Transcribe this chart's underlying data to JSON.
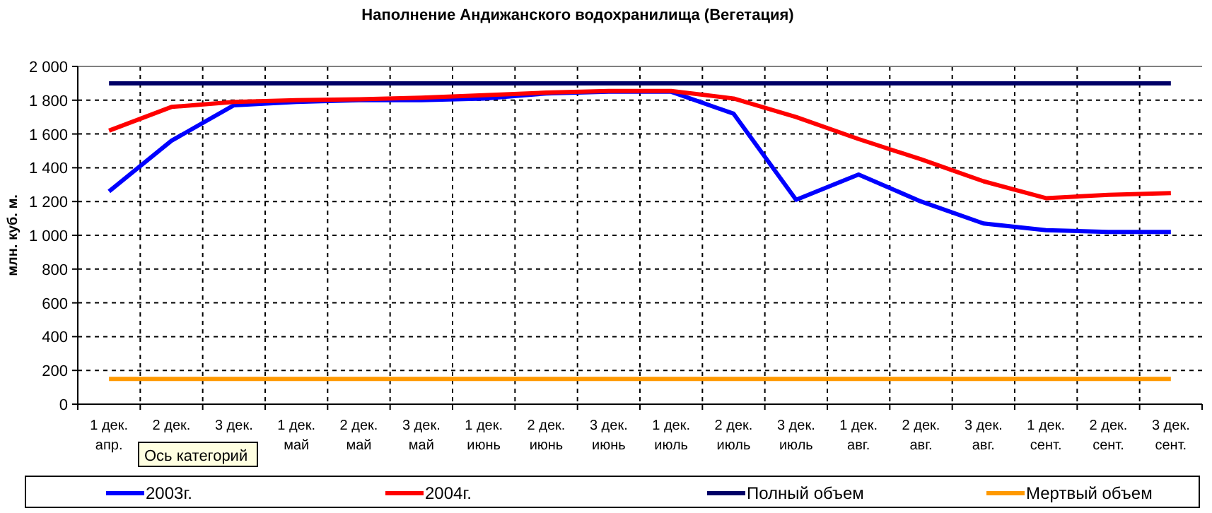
{
  "chart_data": {
    "type": "line",
    "title": "Наполнение Андижанского водохранилища (Вегетация)",
    "ylabel": "млн. куб. м.",
    "categories": [
      "1 дек.\nапр.",
      "2 дек.\nапр.",
      "3 дек.\nапр.",
      "1 дек.\nмай",
      "2 дек.\nмай",
      "3 дек.\nмай",
      "1 дек.\nиюнь",
      "2 дек.\nиюнь",
      "3 дек.\nиюнь",
      "1 дек.\nиюль",
      "2 дек.\nиюль",
      "3 дек.\nиюль",
      "1 дек.\nавг.",
      "2 дек.\nавг.",
      "3 дек.\nавг.",
      "1 дек.\nсент.",
      "2 дек.\nсент.",
      "3 дек.\nсент."
    ],
    "series": [
      {
        "name": "2003г.",
        "color": "#0000ff",
        "values": [
          1260,
          1560,
          1770,
          1790,
          1800,
          1800,
          1810,
          1840,
          1850,
          1850,
          1720,
          1210,
          1360,
          1200,
          1070,
          1030,
          1020,
          1020
        ]
      },
      {
        "name": "2004г.",
        "color": "#ff0000",
        "values": [
          1620,
          1760,
          1790,
          1800,
          1805,
          1815,
          1830,
          1845,
          1855,
          1855,
          1810,
          1700,
          1570,
          1450,
          1320,
          1220,
          1240,
          1250
        ]
      },
      {
        "name": "Полный объем",
        "color": "#000066",
        "values": [
          1900,
          1900,
          1900,
          1900,
          1900,
          1900,
          1900,
          1900,
          1900,
          1900,
          1900,
          1900,
          1900,
          1900,
          1900,
          1900,
          1900,
          1900
        ]
      },
      {
        "name": "Мертвый объем",
        "color": "#ff9900",
        "values": [
          150,
          150,
          150,
          150,
          150,
          150,
          150,
          150,
          150,
          150,
          150,
          150,
          150,
          150,
          150,
          150,
          150,
          150
        ]
      }
    ],
    "ylim": [
      0,
      2000
    ],
    "yticks": [
      0,
      200,
      400,
      600,
      800,
      {
        "value": 1000,
        "label": "1 000"
      },
      {
        "value": 1200,
        "label": "1 200"
      },
      {
        "value": 1400,
        "label": "1 400"
      },
      {
        "value": 1600,
        "label": "1 600"
      },
      {
        "value": 1800,
        "label": "1 800"
      },
      {
        "value": 2000,
        "label": "2 000"
      }
    ],
    "grid": true,
    "legend": "bottom",
    "marker": "none",
    "line_style": "solid",
    "annotations": [
      "Ось категорий"
    ]
  }
}
